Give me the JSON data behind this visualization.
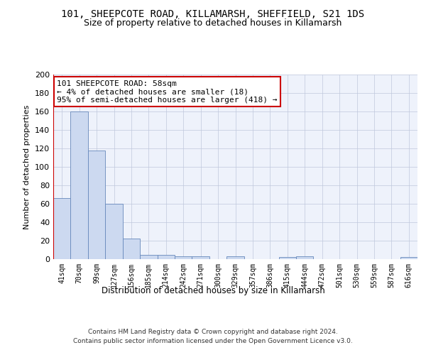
{
  "title_line1": "101, SHEEPCOTE ROAD, KILLAMARSH, SHEFFIELD, S21 1DS",
  "title_line2": "Size of property relative to detached houses in Killamarsh",
  "xlabel": "Distribution of detached houses by size in Killamarsh",
  "ylabel": "Number of detached properties",
  "annotation_line1": "101 SHEEPCOTE ROAD: 58sqm",
  "annotation_line2": "← 4% of detached houses are smaller (18)",
  "annotation_line3": "95% of semi-detached houses are larger (418) →",
  "bin_labels": [
    "41sqm",
    "70sqm",
    "99sqm",
    "127sqm",
    "156sqm",
    "185sqm",
    "214sqm",
    "242sqm",
    "271sqm",
    "300sqm",
    "329sqm",
    "357sqm",
    "386sqm",
    "415sqm",
    "444sqm",
    "472sqm",
    "501sqm",
    "530sqm",
    "559sqm",
    "587sqm",
    "616sqm"
  ],
  "bar_values": [
    66,
    160,
    118,
    60,
    22,
    5,
    5,
    3,
    3,
    0,
    3,
    0,
    0,
    2,
    3,
    0,
    0,
    0,
    0,
    0,
    2
  ],
  "bar_color": "#ccd9f0",
  "bar_edge_color": "#6688bb",
  "red_line_color": "#cc0000",
  "ylim": [
    0,
    200
  ],
  "yticks": [
    0,
    20,
    40,
    60,
    80,
    100,
    120,
    140,
    160,
    180,
    200
  ],
  "bg_color": "#eef2fb",
  "grid_color": "#c0c8dc",
  "footnote_line1": "Contains HM Land Registry data © Crown copyright and database right 2024.",
  "footnote_line2": "Contains public sector information licensed under the Open Government Licence v3.0.",
  "annotation_border_color": "#cc0000",
  "title_fontsize": 10,
  "subtitle_fontsize": 9
}
